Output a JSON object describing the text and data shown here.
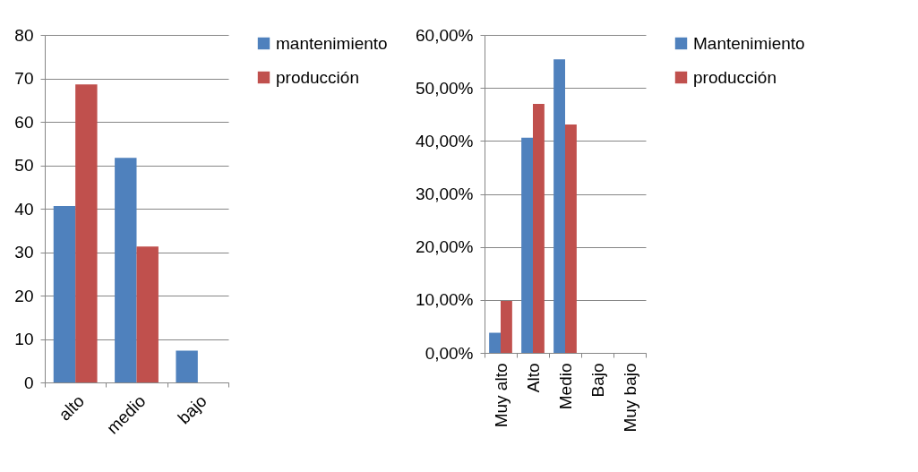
{
  "chart_data": [
    {
      "type": "bar",
      "categories": [
        "alto",
        "medio",
        "bajo"
      ],
      "series": [
        {
          "name": "mantenimiento",
          "color": "#4f81bd",
          "values": [
            40.6,
            51.7,
            7.3
          ]
        },
        {
          "name": "producción",
          "color": "#c0504d",
          "values": [
            68.6,
            31.3,
            null
          ]
        }
      ],
      "ylim": [
        0,
        80
      ],
      "yticks": [
        0,
        10,
        20,
        30,
        40,
        50,
        60,
        70,
        80
      ],
      "grid": "y",
      "legend": "right"
    },
    {
      "type": "bar",
      "categories": [
        "Muy alto",
        "Alto",
        "Medio",
        "Bajo",
        "Muy bajo"
      ],
      "series": [
        {
          "name": "Mantenimiento",
          "color": "#4f81bd",
          "values": [
            3.8,
            40.6,
            55.4,
            null,
            null
          ]
        },
        {
          "name": "producción",
          "color": "#c0504d",
          "values": [
            9.8,
            47.0,
            43.1,
            null,
            null
          ]
        }
      ],
      "ylim": [
        0,
        60
      ],
      "yticks": [
        {
          "value": 0,
          "label": "0,00%"
        },
        {
          "value": 10,
          "label": "10,00%"
        },
        {
          "value": 20,
          "label": "20,00%"
        },
        {
          "value": 30,
          "label": "30,00%"
        },
        {
          "value": 40,
          "label": "40,00%"
        },
        {
          "value": 50,
          "label": "50,00%"
        },
        {
          "value": 60,
          "label": "60,00%"
        }
      ],
      "grid": "y",
      "legend": "right"
    }
  ]
}
